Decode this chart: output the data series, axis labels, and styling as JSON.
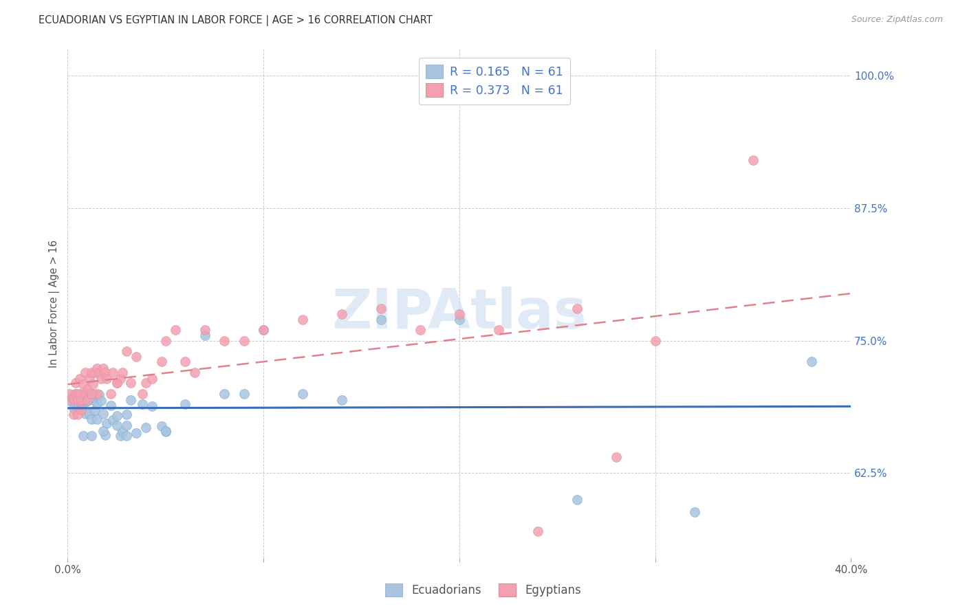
{
  "title": "ECUADORIAN VS EGYPTIAN IN LABOR FORCE | AGE > 16 CORRELATION CHART",
  "source": "Source: ZipAtlas.com",
  "ylabel": "In Labor Force | Age > 16",
  "yticks_pct": [
    62.5,
    75.0,
    87.5,
    100.0
  ],
  "xmin": 0.0,
  "xmax": 0.4,
  "ymin": 0.545,
  "ymax": 1.025,
  "ecuadorian_color": "#a8c4e0",
  "egyptian_color": "#f4a0b0",
  "ecuadorian_line_color": "#3a6db5",
  "egyptian_line_color": "#e0808a",
  "blue_text_color": "#4472C4",
  "watermark_text": "ZIPAtlas",
  "watermark_color": "#ccddf0",
  "legend_label_ecu": "R = 0.165   N = 61",
  "legend_label_egy": "R = 0.373   N = 61",
  "bottom_legend_ecu": "Ecuadorians",
  "bottom_legend_egy": "Egyptians",
  "ecu_x": [
    0.001,
    0.002,
    0.003,
    0.003,
    0.004,
    0.004,
    0.005,
    0.005,
    0.006,
    0.006,
    0.007,
    0.007,
    0.008,
    0.009,
    0.009,
    0.01,
    0.01,
    0.011,
    0.012,
    0.013,
    0.013,
    0.014,
    0.015,
    0.015,
    0.016,
    0.017,
    0.018,
    0.019,
    0.02,
    0.022,
    0.023,
    0.025,
    0.027,
    0.028,
    0.03,
    0.03,
    0.032,
    0.035,
    0.038,
    0.04,
    0.043,
    0.048,
    0.05,
    0.06,
    0.07,
    0.08,
    0.1,
    0.12,
    0.14,
    0.16,
    0.2,
    0.26,
    0.32,
    0.38,
    0.008,
    0.012,
    0.018,
    0.025,
    0.03,
    0.05,
    0.09
  ],
  "ecu_y": [
    0.693,
    0.697,
    0.695,
    0.686,
    0.691,
    0.7,
    0.694,
    0.686,
    0.7,
    0.693,
    0.69,
    0.685,
    0.698,
    0.692,
    0.681,
    0.7,
    0.693,
    0.681,
    0.676,
    0.694,
    0.7,
    0.684,
    0.691,
    0.676,
    0.699,
    0.693,
    0.681,
    0.661,
    0.672,
    0.689,
    0.675,
    0.679,
    0.66,
    0.664,
    0.67,
    0.68,
    0.694,
    0.663,
    0.69,
    0.668,
    0.688,
    0.669,
    0.664,
    0.69,
    0.755,
    0.7,
    0.76,
    0.7,
    0.694,
    0.77,
    0.77,
    0.6,
    0.588,
    0.73,
    0.66,
    0.66,
    0.665,
    0.67,
    0.66,
    0.665,
    0.7
  ],
  "egy_x": [
    0.001,
    0.002,
    0.003,
    0.003,
    0.004,
    0.004,
    0.005,
    0.005,
    0.006,
    0.006,
    0.007,
    0.007,
    0.008,
    0.009,
    0.009,
    0.01,
    0.01,
    0.011,
    0.012,
    0.013,
    0.014,
    0.015,
    0.015,
    0.016,
    0.017,
    0.018,
    0.019,
    0.02,
    0.022,
    0.023,
    0.025,
    0.027,
    0.028,
    0.03,
    0.032,
    0.035,
    0.038,
    0.04,
    0.043,
    0.048,
    0.05,
    0.055,
    0.06,
    0.065,
    0.07,
    0.08,
    0.09,
    0.1,
    0.12,
    0.14,
    0.16,
    0.18,
    0.2,
    0.22,
    0.24,
    0.26,
    0.28,
    0.3,
    0.35,
    0.012,
    0.025
  ],
  "egy_y": [
    0.7,
    0.694,
    0.695,
    0.68,
    0.71,
    0.7,
    0.694,
    0.68,
    0.714,
    0.7,
    0.694,
    0.685,
    0.709,
    0.7,
    0.72,
    0.694,
    0.704,
    0.714,
    0.72,
    0.709,
    0.72,
    0.724,
    0.7,
    0.719,
    0.714,
    0.724,
    0.72,
    0.714,
    0.7,
    0.72,
    0.71,
    0.714,
    0.72,
    0.74,
    0.71,
    0.735,
    0.7,
    0.71,
    0.714,
    0.73,
    0.75,
    0.76,
    0.73,
    0.72,
    0.76,
    0.75,
    0.75,
    0.76,
    0.77,
    0.775,
    0.78,
    0.76,
    0.775,
    0.76,
    0.57,
    0.78,
    0.64,
    0.75,
    0.92,
    0.7,
    0.71
  ]
}
